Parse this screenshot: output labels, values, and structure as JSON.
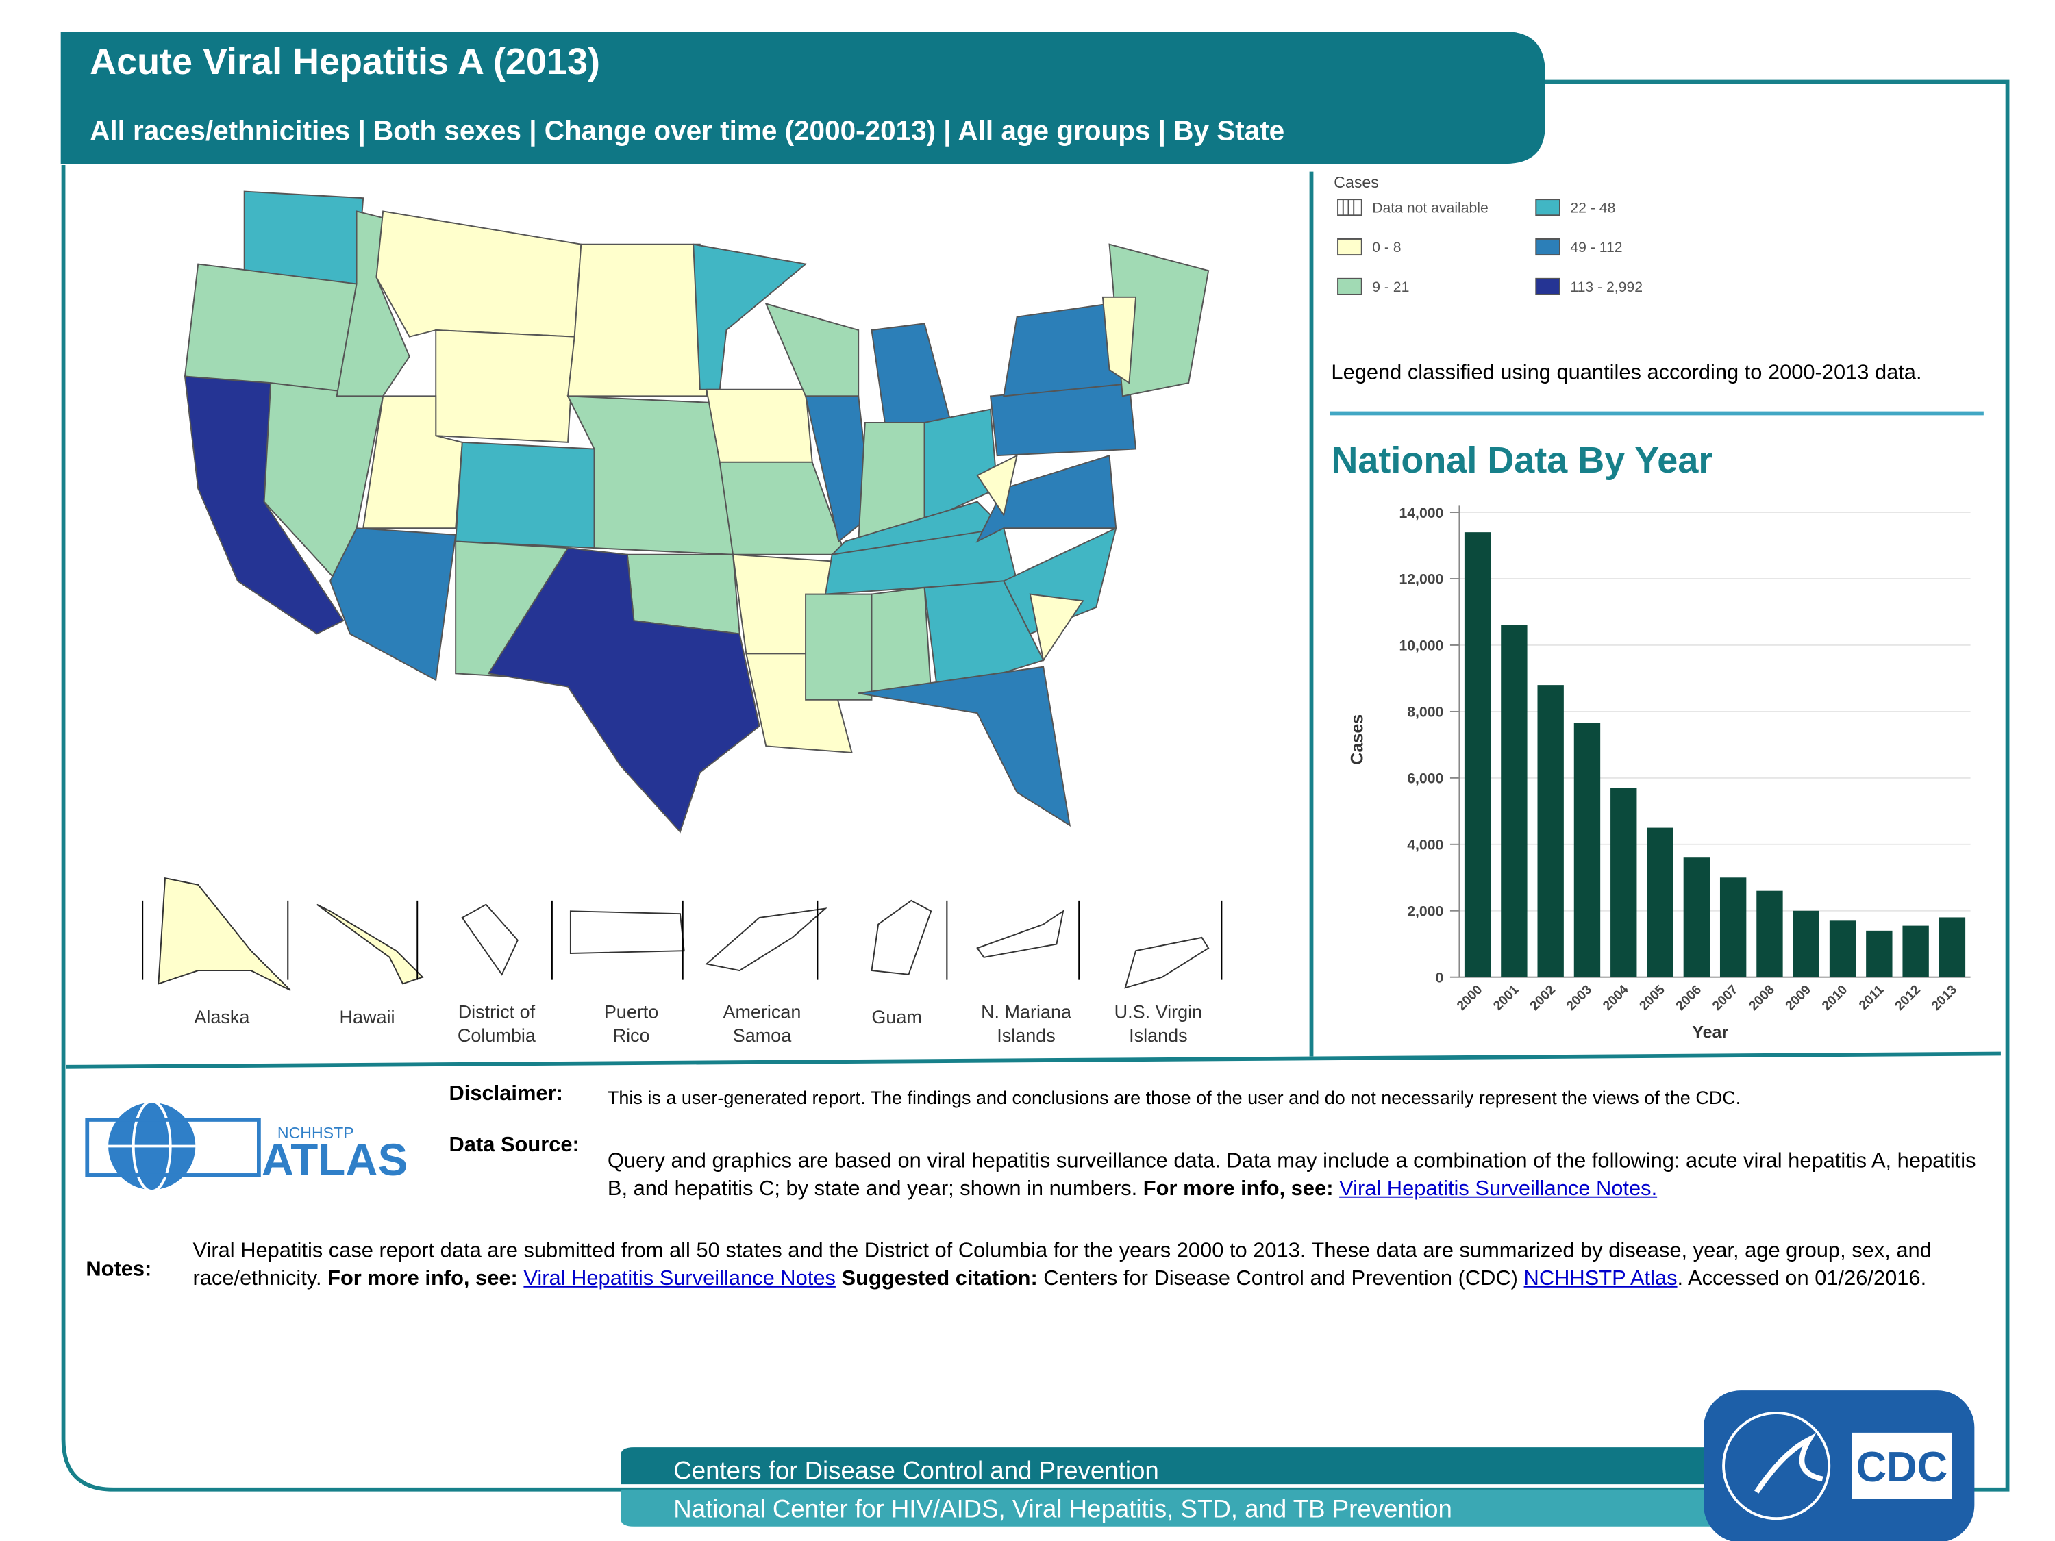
{
  "header": {
    "title": "Acute Viral Hepatitis  A (2013)",
    "subtitle": "All races/ethnicities | Both sexes | Change over time (2000-2013) | All age groups | By State"
  },
  "legend": {
    "title": "Cases",
    "items": [
      {
        "label": "Data not available",
        "color": "#ffffff"
      },
      {
        "label": "0 - 8",
        "color": "#ffffcc"
      },
      {
        "label": "9 - 21",
        "color": "#a1dab4"
      },
      {
        "label": "22 - 48",
        "color": "#41b6c4"
      },
      {
        "label": "49 - 112",
        "color": "#2c7fb8"
      },
      {
        "label": "113 - 2,992",
        "color": "#253494"
      }
    ],
    "note": "Legend classified using quantiles according to 2000-2013 data."
  },
  "territories": [
    "Alaska",
    "Hawaii",
    "District of Columbia",
    "Puerto Rico",
    "American Samoa",
    "Guam",
    "N. Mariana Islands",
    "U.S. Virgin Islands"
  ],
  "chart_data": {
    "type": "bar",
    "title": "National Data By Year",
    "y_label": "Cases",
    "x_label": "Year",
    "categories": [
      "2000",
      "2001",
      "2002",
      "2003",
      "2004",
      "2005",
      "2006",
      "2007",
      "2008",
      "2009",
      "2010",
      "2011",
      "2012",
      "2013"
    ],
    "values": [
      13400,
      10600,
      8800,
      7650,
      5700,
      4500,
      3600,
      3000,
      2600,
      2000,
      1700,
      1400,
      1550,
      1800
    ],
    "color": "#0b4a3c",
    "ylim": [
      0,
      14000
    ],
    "grid": true,
    "yticks": [
      0,
      {
        "value": 2000,
        "label": "2,000"
      },
      {
        "value": 4000,
        "label": "4,000"
      },
      {
        "value": 6000,
        "label": "6,000"
      },
      {
        "value": 8000,
        "label": "8,000"
      },
      {
        "value": 10000,
        "label": "10,000"
      },
      {
        "value": 12000,
        "label": "12,000"
      },
      {
        "value": 14000,
        "label": "14,000"
      }
    ]
  },
  "footer": {
    "disclaimer_label": "Disclaimer:",
    "disclaimer": "This is a user-generated report. The findings and conclusions are those of the user and do not necessarily represent the views of the CDC.",
    "source_label": "Data Source:",
    "source_text": "Query and graphics are based on viral hepatitis surveillance data. Data may include a combination of the following: acute viral hepatitis A, hepatitis B, and hepatitis C; by state and year; shown in numbers.",
    "source_more": "For more info, see:",
    "source_link": "Viral Hepatitis Surveillance Notes.",
    "notes_label": "Notes:",
    "notes_text": "Viral Hepatitis case report data are submitted from all 50 states and the District of Columbia for the years 2000 to 2013. These data are summarized by disease, year, age group, sex, and race/ethnicity.",
    "notes_more": "For more info, see:",
    "notes_link": "Viral Hepatitis Surveillance Notes",
    "citation_label": "Suggested citation:",
    "citation": "Centers for Disease Control and Prevention (CDC)",
    "citation_link": "NCHHSTP Atlas",
    "accessed": ". Accessed on 01/26/2016.",
    "logo_small": "NCHHSTP",
    "logo": "ATLAS",
    "banner1": "Centers for Disease Control and Prevention",
    "banner2": "National Center for HIV/AIDS, Viral Hepatitis, STD, and TB Prevention",
    "cdc": "CDC"
  }
}
